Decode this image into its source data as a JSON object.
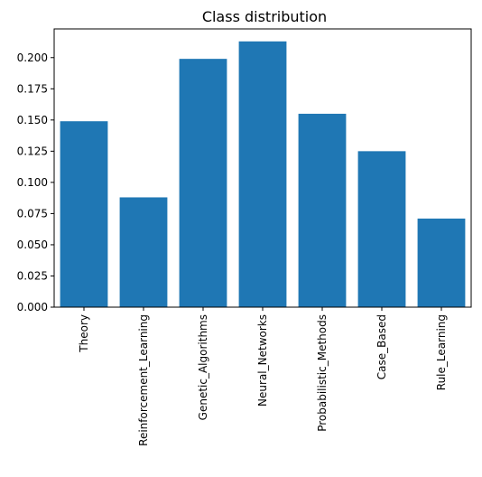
{
  "chart_data": {
    "type": "bar",
    "title": "Class distribution",
    "xlabel": "",
    "ylabel": "",
    "categories": [
      "Theory",
      "Reinforcement_Learning",
      "Genetic_Algorithms",
      "Neural_Networks",
      "Probabilistic_Methods",
      "Case_Based",
      "Rule_Learning"
    ],
    "values": [
      0.149,
      0.088,
      0.199,
      0.213,
      0.155,
      0.125,
      0.071
    ],
    "ylim": [
      0,
      0.223
    ],
    "yticks": [
      0.0,
      0.025,
      0.05,
      0.075,
      0.1,
      0.125,
      0.15,
      0.175,
      0.2
    ],
    "ytick_labels": [
      "0.000",
      "0.025",
      "0.050",
      "0.075",
      "0.100",
      "0.125",
      "0.150",
      "0.175",
      "0.200"
    ],
    "bar_color": "#1f77b4",
    "grid": false,
    "legend": false
  }
}
